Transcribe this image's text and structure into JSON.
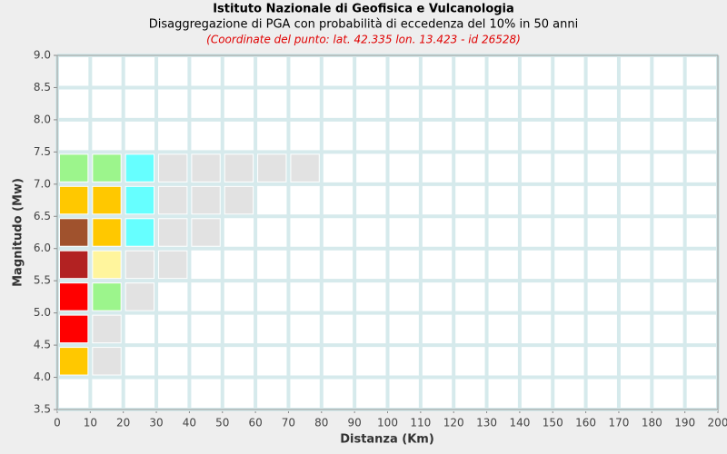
{
  "chart_data": {
    "type": "heatmap",
    "title": "Istituto Nazionale di Geofisica e Vulcanologia",
    "subtitle": "Disaggregazione di PGA con probabilità di eccedenza del 10% in 50 anni",
    "annotation": "(Coordinate del punto: lat. 42.335 lon. 13.423 - id 26528)",
    "x_label": "Distanza (Km)",
    "y_label": "Magnitudo (Mw)",
    "xlim": [
      0,
      200
    ],
    "xticks": [
      0,
      10,
      20,
      30,
      40,
      50,
      60,
      70,
      80,
      90,
      100,
      110,
      120,
      130,
      140,
      150,
      160,
      170,
      180,
      190,
      200
    ],
    "ylim": [
      3.5,
      9.0
    ],
    "yticks": [
      {
        "value": 3.5,
        "label": "3.5"
      },
      {
        "value": 4,
        "label": "4.0"
      },
      {
        "value": 4.5,
        "label": "4.5"
      },
      {
        "value": 5,
        "label": "5.0"
      },
      {
        "value": 5.5,
        "label": "5.5"
      },
      {
        "value": 6,
        "label": "6.0"
      },
      {
        "value": 6.5,
        "label": "6.5"
      },
      {
        "value": 7,
        "label": "7.0"
      },
      {
        "value": 7.5,
        "label": "7.5"
      },
      {
        "value": 8,
        "label": "8.0"
      },
      {
        "value": 8.5,
        "label": "8.5"
      },
      {
        "value": 9,
        "label": "9.0"
      }
    ],
    "grid": true,
    "cells": [
      {
        "x": 0,
        "y": 7.0,
        "color": "#9cf58c"
      },
      {
        "x": 10,
        "y": 7.0,
        "color": "#9cf58c"
      },
      {
        "x": 20,
        "y": 7.0,
        "color": "#66ffff"
      },
      {
        "x": 30,
        "y": 7.0,
        "color": "#e2e2e2"
      },
      {
        "x": 40,
        "y": 7.0,
        "color": "#e2e2e2"
      },
      {
        "x": 50,
        "y": 7.0,
        "color": "#e2e2e2"
      },
      {
        "x": 60,
        "y": 7.0,
        "color": "#e2e2e2"
      },
      {
        "x": 70,
        "y": 7.0,
        "color": "#e2e2e2"
      },
      {
        "x": 0,
        "y": 6.5,
        "color": "#ffc800"
      },
      {
        "x": 10,
        "y": 6.5,
        "color": "#ffc800"
      },
      {
        "x": 20,
        "y": 6.5,
        "color": "#66ffff"
      },
      {
        "x": 30,
        "y": 6.5,
        "color": "#e2e2e2"
      },
      {
        "x": 40,
        "y": 6.5,
        "color": "#e2e2e2"
      },
      {
        "x": 50,
        "y": 6.5,
        "color": "#e2e2e2"
      },
      {
        "x": 0,
        "y": 6.0,
        "color": "#a0522d"
      },
      {
        "x": 10,
        "y": 6.0,
        "color": "#ffc800"
      },
      {
        "x": 20,
        "y": 6.0,
        "color": "#66ffff"
      },
      {
        "x": 30,
        "y": 6.0,
        "color": "#e2e2e2"
      },
      {
        "x": 40,
        "y": 6.0,
        "color": "#e2e2e2"
      },
      {
        "x": 0,
        "y": 5.5,
        "color": "#b22222"
      },
      {
        "x": 10,
        "y": 5.5,
        "color": "#fff59d"
      },
      {
        "x": 20,
        "y": 5.5,
        "color": "#e2e2e2"
      },
      {
        "x": 30,
        "y": 5.5,
        "color": "#e2e2e2"
      },
      {
        "x": 0,
        "y": 5.0,
        "color": "#ff0000"
      },
      {
        "x": 10,
        "y": 5.0,
        "color": "#9cf58c"
      },
      {
        "x": 20,
        "y": 5.0,
        "color": "#e2e2e2"
      },
      {
        "x": 0,
        "y": 4.5,
        "color": "#ff0000"
      },
      {
        "x": 10,
        "y": 4.5,
        "color": "#e2e2e2"
      },
      {
        "x": 0,
        "y": 4.0,
        "color": "#ffc800"
      },
      {
        "x": 10,
        "y": 4.0,
        "color": "#e2e2e2"
      }
    ]
  }
}
